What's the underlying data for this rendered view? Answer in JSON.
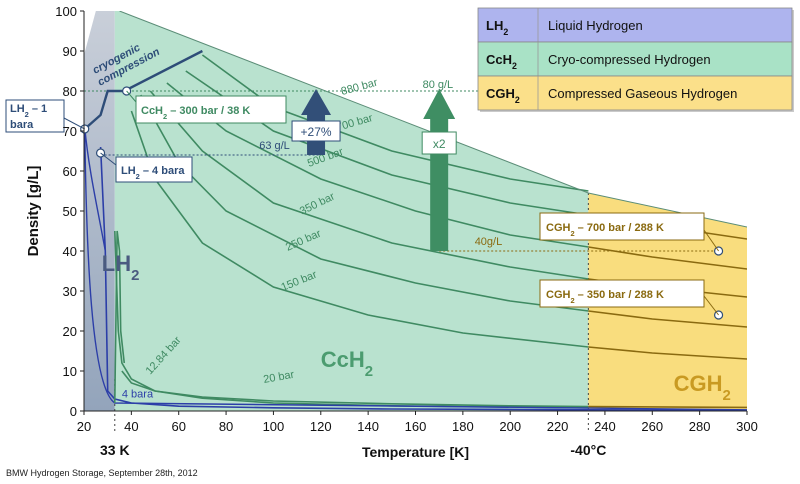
{
  "chart_data": {
    "type": "line",
    "title": "",
    "xlabel": "Temperature [K]",
    "ylabel": "Density [g/L]",
    "xlim": [
      20,
      300
    ],
    "ylim": [
      0,
      100
    ],
    "x_ticks": [
      20,
      40,
      60,
      80,
      100,
      120,
      140,
      160,
      180,
      200,
      220,
      240,
      260,
      280,
      300
    ],
    "y_ticks": [
      0,
      10,
      20,
      30,
      40,
      50,
      60,
      70,
      80,
      90,
      100
    ],
    "extra_x_labels": [
      {
        "x": 33,
        "label": "33 K"
      },
      {
        "x": 233,
        "label": "-40°C"
      }
    ],
    "regions": [
      {
        "name": "LH2",
        "label": "LH",
        "sub": "2",
        "color": "#a7b5c9",
        "x_range": [
          20,
          33
        ]
      },
      {
        "name": "CcH2",
        "label": "CcH",
        "sub": "2",
        "color": "#b9e2cf",
        "x_range": [
          33,
          233
        ]
      },
      {
        "name": "CGH2",
        "label": "CGH",
        "sub": "2",
        "color": "#f9dd7e",
        "x_range": [
          233,
          300
        ]
      }
    ],
    "series": [
      {
        "name": "880 bar",
        "x": [
          70,
          100,
          150,
          200,
          233
        ],
        "y": [
          89,
          76,
          65,
          58,
          55
        ]
      },
      {
        "name": "700 bar",
        "x": [
          63,
          100,
          150,
          200,
          233,
          260,
          300
        ],
        "y": [
          85,
          70,
          59,
          52,
          49,
          46.5,
          43
        ]
      },
      {
        "name": "500 bar",
        "x": [
          55,
          80,
          120,
          160,
          200,
          233,
          260,
          300
        ],
        "y": [
          82,
          70,
          58,
          50,
          44,
          41,
          38.5,
          35.5
        ]
      },
      {
        "name": "350 bar",
        "x": [
          48,
          70,
          100,
          150,
          200,
          233,
          260,
          300
        ],
        "y": [
          80,
          65,
          52,
          42,
          36,
          33,
          31,
          28.5
        ]
      },
      {
        "name": "250 bar",
        "x": [
          44,
          60,
          80,
          120,
          160,
          200,
          233,
          260,
          300
        ],
        "y": [
          79,
          62,
          50,
          38,
          32,
          27.5,
          25,
          23,
          21
        ]
      },
      {
        "name": "150 bar",
        "x": [
          40,
          50,
          70,
          100,
          140,
          180,
          233,
          260,
          300
        ],
        "y": [
          75,
          58,
          42,
          31,
          24,
          19.5,
          16,
          14.5,
          13
        ]
      },
      {
        "name": "20 bar",
        "x": [
          36,
          40,
          50,
          70,
          100,
          150,
          200,
          233,
          300
        ],
        "y": [
          10,
          7,
          5,
          3.5,
          2.5,
          1.8,
          1.3,
          1.1,
          0.9
        ]
      },
      {
        "name": "12.84 bar",
        "x": [
          33,
          34.5,
          36,
          40,
          50,
          70,
          100,
          150,
          233
        ],
        "y": [
          45,
          20,
          12,
          8,
          5,
          3.2,
          2,
          1.3,
          0.8
        ]
      },
      {
        "name": "4 bara",
        "x": [
          27,
          29,
          30,
          33,
          40,
          60,
          100,
          150,
          233,
          300
        ],
        "y": [
          66,
          40,
          5,
          3,
          2,
          1.2,
          0.8,
          0.5,
          0.3,
          0.2
        ]
      }
    ],
    "curve_labels": [
      {
        "text": "880 bar",
        "x": 129,
        "y": 79,
        "rotate": -15
      },
      {
        "text": "700 bar",
        "x": 127,
        "y": 70,
        "rotate": -16
      },
      {
        "text": "500 bar",
        "x": 115,
        "y": 61,
        "rotate": -20
      },
      {
        "text": "350 bar",
        "x": 112,
        "y": 49,
        "rotate": -26
      },
      {
        "text": "250 bar",
        "x": 106,
        "y": 40,
        "rotate": -24
      },
      {
        "text": "150 bar",
        "x": 104,
        "y": 30,
        "rotate": -22
      },
      {
        "text": "20 bar",
        "x": 96,
        "y": 7,
        "rotate": -10
      },
      {
        "text": "12.84 bar",
        "x": 48,
        "y": 9,
        "rotate": -48
      },
      {
        "text": "4 bara",
        "x": 36,
        "y": 3.4,
        "rotate": 0
      }
    ],
    "annotations": {
      "cryogenic": "cryogenic",
      "compression": "compression",
      "lh2_1": "LH",
      "lh2_1_sub": "2",
      "lh2_1_tail": " – 1",
      "lh2_1_line2": "bara",
      "lh2_4": "LH",
      "lh2_4_sub": "2",
      "lh2_4_tail": " – 4 bara",
      "cch2_point": "CcH",
      "cch2_point_sub": "2",
      "cch2_point_tail": " – 300 bar / 38 K",
      "cgh2_700": "CGH",
      "cgh2_700_sub": "2",
      "cgh2_700_tail": " – 700 bar / 288 K",
      "cgh2_350": "CGH",
      "cgh2_350_sub": "2",
      "cgh2_350_tail": " – 350 bar / 288 K",
      "g80": "80 g/L",
      "g63": "63 g/L",
      "g40": "40g/L",
      "plus27": "+27%",
      "x2": "x2"
    },
    "legend": {
      "position": "top-right",
      "entries": [
        {
          "label": "LH",
          "sub": "2",
          "description": "Liquid Hydrogen",
          "color": "#aeb4ee"
        },
        {
          "label": "CcH",
          "sub": "2",
          "description": "Cryo-compressed Hydrogen",
          "color": "#a9e2c6"
        },
        {
          "label": "CGH",
          "sub": "2",
          "description": "Compressed Gaseous Hydrogen",
          "color": "#fbe08a"
        }
      ]
    },
    "colors": {
      "lh2_region": "#a7b5c9",
      "cch2_region": "#b9e2cf",
      "cgh2_region": "#f9dd7e",
      "green_curve": "#3f8a62",
      "amber_curve": "#8a6a10",
      "blue_curve": "#2c3ea8",
      "dark_blue": "#2e4d78",
      "arrow_navy": "#324f78",
      "arrow_green": "#3f8e63",
      "cgh2_text": "#c99a22",
      "cch2_text": "#4c9c70",
      "lh2_text": "#4a5b80"
    }
  },
  "footer": "BMW Hydrogen Storage, September 28th, 2012"
}
